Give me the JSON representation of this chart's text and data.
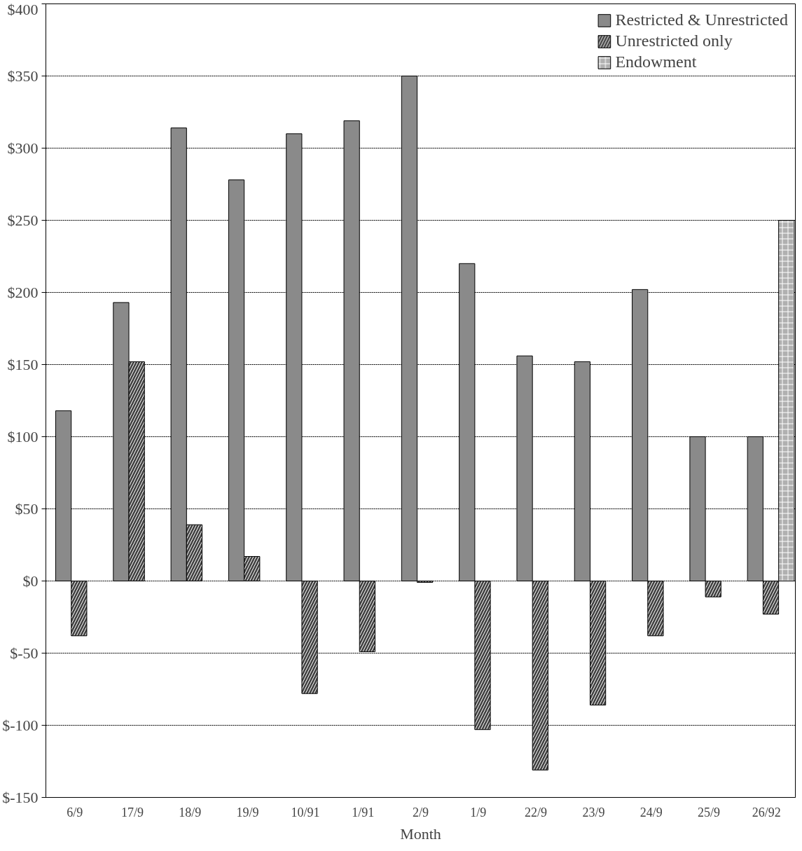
{
  "chart_data": {
    "type": "bar",
    "xlabel": "Month",
    "categories": [
      "6/9",
      "17/9",
      "18/9",
      "19/9",
      "10/91",
      "1/91",
      "2/9",
      "1/9",
      "22/9",
      "23/9",
      "24/9",
      "25/9",
      "26/92"
    ],
    "series": [
      {
        "name": "Restricted & Unrestricted",
        "color": "#8a8a8a",
        "values": [
          118,
          193,
          314,
          278,
          310,
          319,
          350,
          220,
          156,
          152,
          202,
          100,
          100
        ]
      },
      {
        "name": "Unrestricted only",
        "color": "#444444",
        "values": [
          -38,
          152,
          39,
          17,
          -78,
          -49,
          -1,
          -103,
          -131,
          -86,
          -38,
          -11,
          -23
        ]
      },
      {
        "name": "Endowment",
        "color": "#b0b0b0",
        "values": [
          null,
          null,
          null,
          null,
          null,
          null,
          null,
          null,
          null,
          null,
          null,
          null,
          250
        ]
      }
    ],
    "ylim": [
      -150,
      400
    ],
    "yticks": [
      {
        "value": -150,
        "label": "$-150"
      },
      {
        "value": -100,
        "label": "$-100"
      },
      {
        "value": -50,
        "label": "$-50"
      },
      {
        "value": 0,
        "label": "$0"
      },
      {
        "value": 50,
        "label": "$50"
      },
      {
        "value": 100,
        "label": "$100"
      },
      {
        "value": 150,
        "label": "$150"
      },
      {
        "value": 200,
        "label": "$200"
      },
      {
        "value": 250,
        "label": "$250"
      },
      {
        "value": 300,
        "label": "$300"
      },
      {
        "value": 350,
        "label": "$350"
      },
      {
        "value": 400,
        "label": "$400"
      }
    ],
    "grid": "y",
    "legend": "top right"
  }
}
